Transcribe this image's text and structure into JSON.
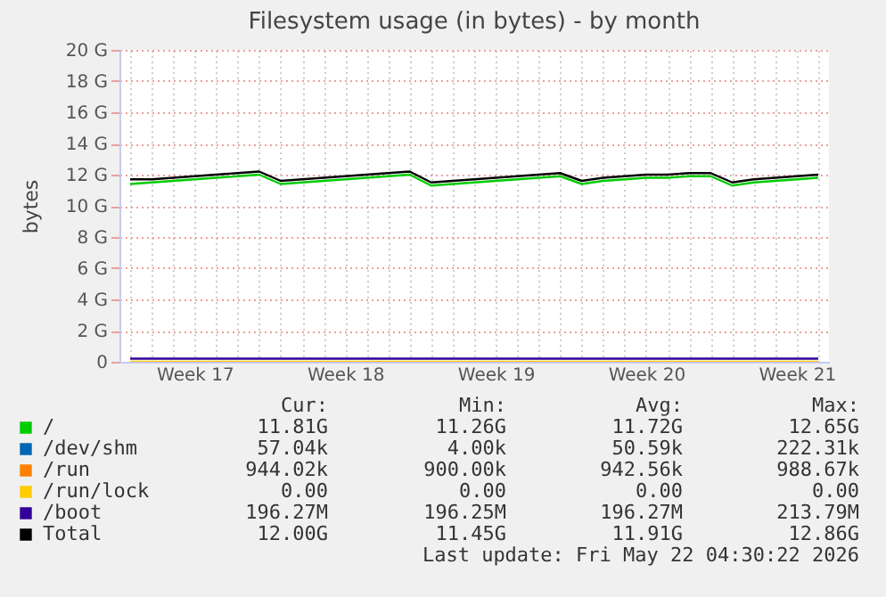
{
  "chart_data": {
    "type": "line",
    "title": "Filesystem usage (in bytes) - by month",
    "ylabel": "bytes",
    "categories": [
      null,
      null,
      null,
      "Week 17",
      null,
      null,
      null,
      null,
      null,
      null,
      "Week 18",
      null,
      null,
      null,
      null,
      null,
      null,
      "Week 19",
      null,
      null,
      null,
      null,
      null,
      null,
      "Week 20",
      null,
      null,
      null,
      null,
      null,
      null,
      "Week 21",
      null
    ],
    "series": [
      {
        "name": "/",
        "color": "#00cc00",
        "values": [
          11.4,
          11.5,
          11.6,
          11.7,
          11.8,
          11.9,
          12.0,
          11.4,
          11.5,
          11.6,
          11.7,
          11.8,
          11.9,
          12.0,
          11.3,
          11.4,
          11.5,
          11.6,
          11.7,
          11.8,
          11.9,
          11.4,
          11.6,
          11.7,
          11.8,
          11.8,
          11.9,
          11.9,
          11.3,
          11.5,
          11.6,
          11.7,
          11.8
        ]
      },
      {
        "name": "/dev/shm",
        "color": "#0066b3",
        "values": [
          null,
          null,
          null,
          null,
          null,
          null,
          null,
          null,
          null,
          null,
          null,
          null,
          null,
          null,
          null,
          null,
          null,
          null,
          null,
          null,
          null,
          null,
          null,
          null,
          null,
          null,
          null,
          null,
          null,
          null,
          null,
          null,
          null
        ]
      },
      {
        "name": "/run",
        "color": "#ff8000",
        "values": [
          null,
          null,
          null,
          null,
          null,
          null,
          null,
          null,
          null,
          null,
          null,
          null,
          null,
          null,
          null,
          null,
          null,
          null,
          null,
          null,
          null,
          null,
          null,
          null,
          null,
          null,
          null,
          null,
          null,
          null,
          null,
          null,
          null
        ]
      },
      {
        "name": "/run/lock",
        "color": "#ffcc00",
        "values": [
          0,
          0,
          0,
          0,
          0,
          0,
          0,
          0,
          0,
          0,
          0,
          0,
          0,
          0,
          0,
          0,
          0,
          0,
          0,
          0,
          0,
          0,
          0,
          0,
          0,
          0,
          0,
          0,
          0,
          0,
          0,
          0,
          0
        ]
      },
      {
        "name": "/boot",
        "color": "#330099",
        "values": [
          0.2,
          0.2,
          0.2,
          0.2,
          0.2,
          0.2,
          0.2,
          0.2,
          0.2,
          0.2,
          0.2,
          0.2,
          0.2,
          0.2,
          0.2,
          0.2,
          0.2,
          0.2,
          0.2,
          0.2,
          0.2,
          0.2,
          0.2,
          0.2,
          0.2,
          0.2,
          0.2,
          0.2,
          0.2,
          0.2,
          0.2,
          0.2,
          0.2
        ]
      },
      {
        "name": "Total",
        "color": "#000000",
        "values": [
          11.7,
          11.7,
          11.8,
          11.9,
          12.0,
          12.1,
          12.2,
          11.6,
          11.7,
          11.8,
          11.9,
          12.0,
          12.1,
          12.2,
          11.5,
          11.6,
          11.7,
          11.8,
          11.9,
          12.0,
          12.1,
          11.6,
          11.8,
          11.9,
          12.0,
          12.0,
          12.1,
          12.1,
          11.5,
          11.7,
          11.8,
          11.9,
          12.0
        ]
      }
    ],
    "ylim": [
      0,
      20
    ],
    "yticks": [
      0,
      {
        "value": 2,
        "label": "2 G"
      },
      {
        "value": 4,
        "label": "4 G"
      },
      {
        "value": 6,
        "label": "6 G"
      },
      {
        "value": 8,
        "label": "8 G"
      },
      {
        "value": 10,
        "label": "10 G"
      },
      {
        "value": 12,
        "label": "12 G"
      },
      {
        "value": 14,
        "label": "14 G"
      },
      {
        "value": 16,
        "label": "16 G"
      },
      {
        "value": 18,
        "label": "18 G"
      },
      {
        "value": 20,
        "label": "20 G"
      }
    ],
    "grid": true,
    "legend": "bottom",
    "marker": "none",
    "line_style": "solid",
    "annotations": [
      "Cur:",
      "Min:",
      "Avg:",
      "Max:",
      "11.81G",
      "11.26G",
      "11.72G",
      "12.65G",
      "57.04k",
      "4.00k",
      "50.59k",
      "222.31k",
      "944.02k",
      "900.00k",
      "942.56k",
      "988.67k",
      "0.00",
      "0.00",
      "0.00",
      "0.00",
      "196.27M",
      "196.25M",
      "196.27M",
      "213.79M",
      "12.00G",
      "11.45G",
      "11.91G",
      "12.86G",
      "Last update: Fri May 22 04:30:22 2026"
    ]
  }
}
